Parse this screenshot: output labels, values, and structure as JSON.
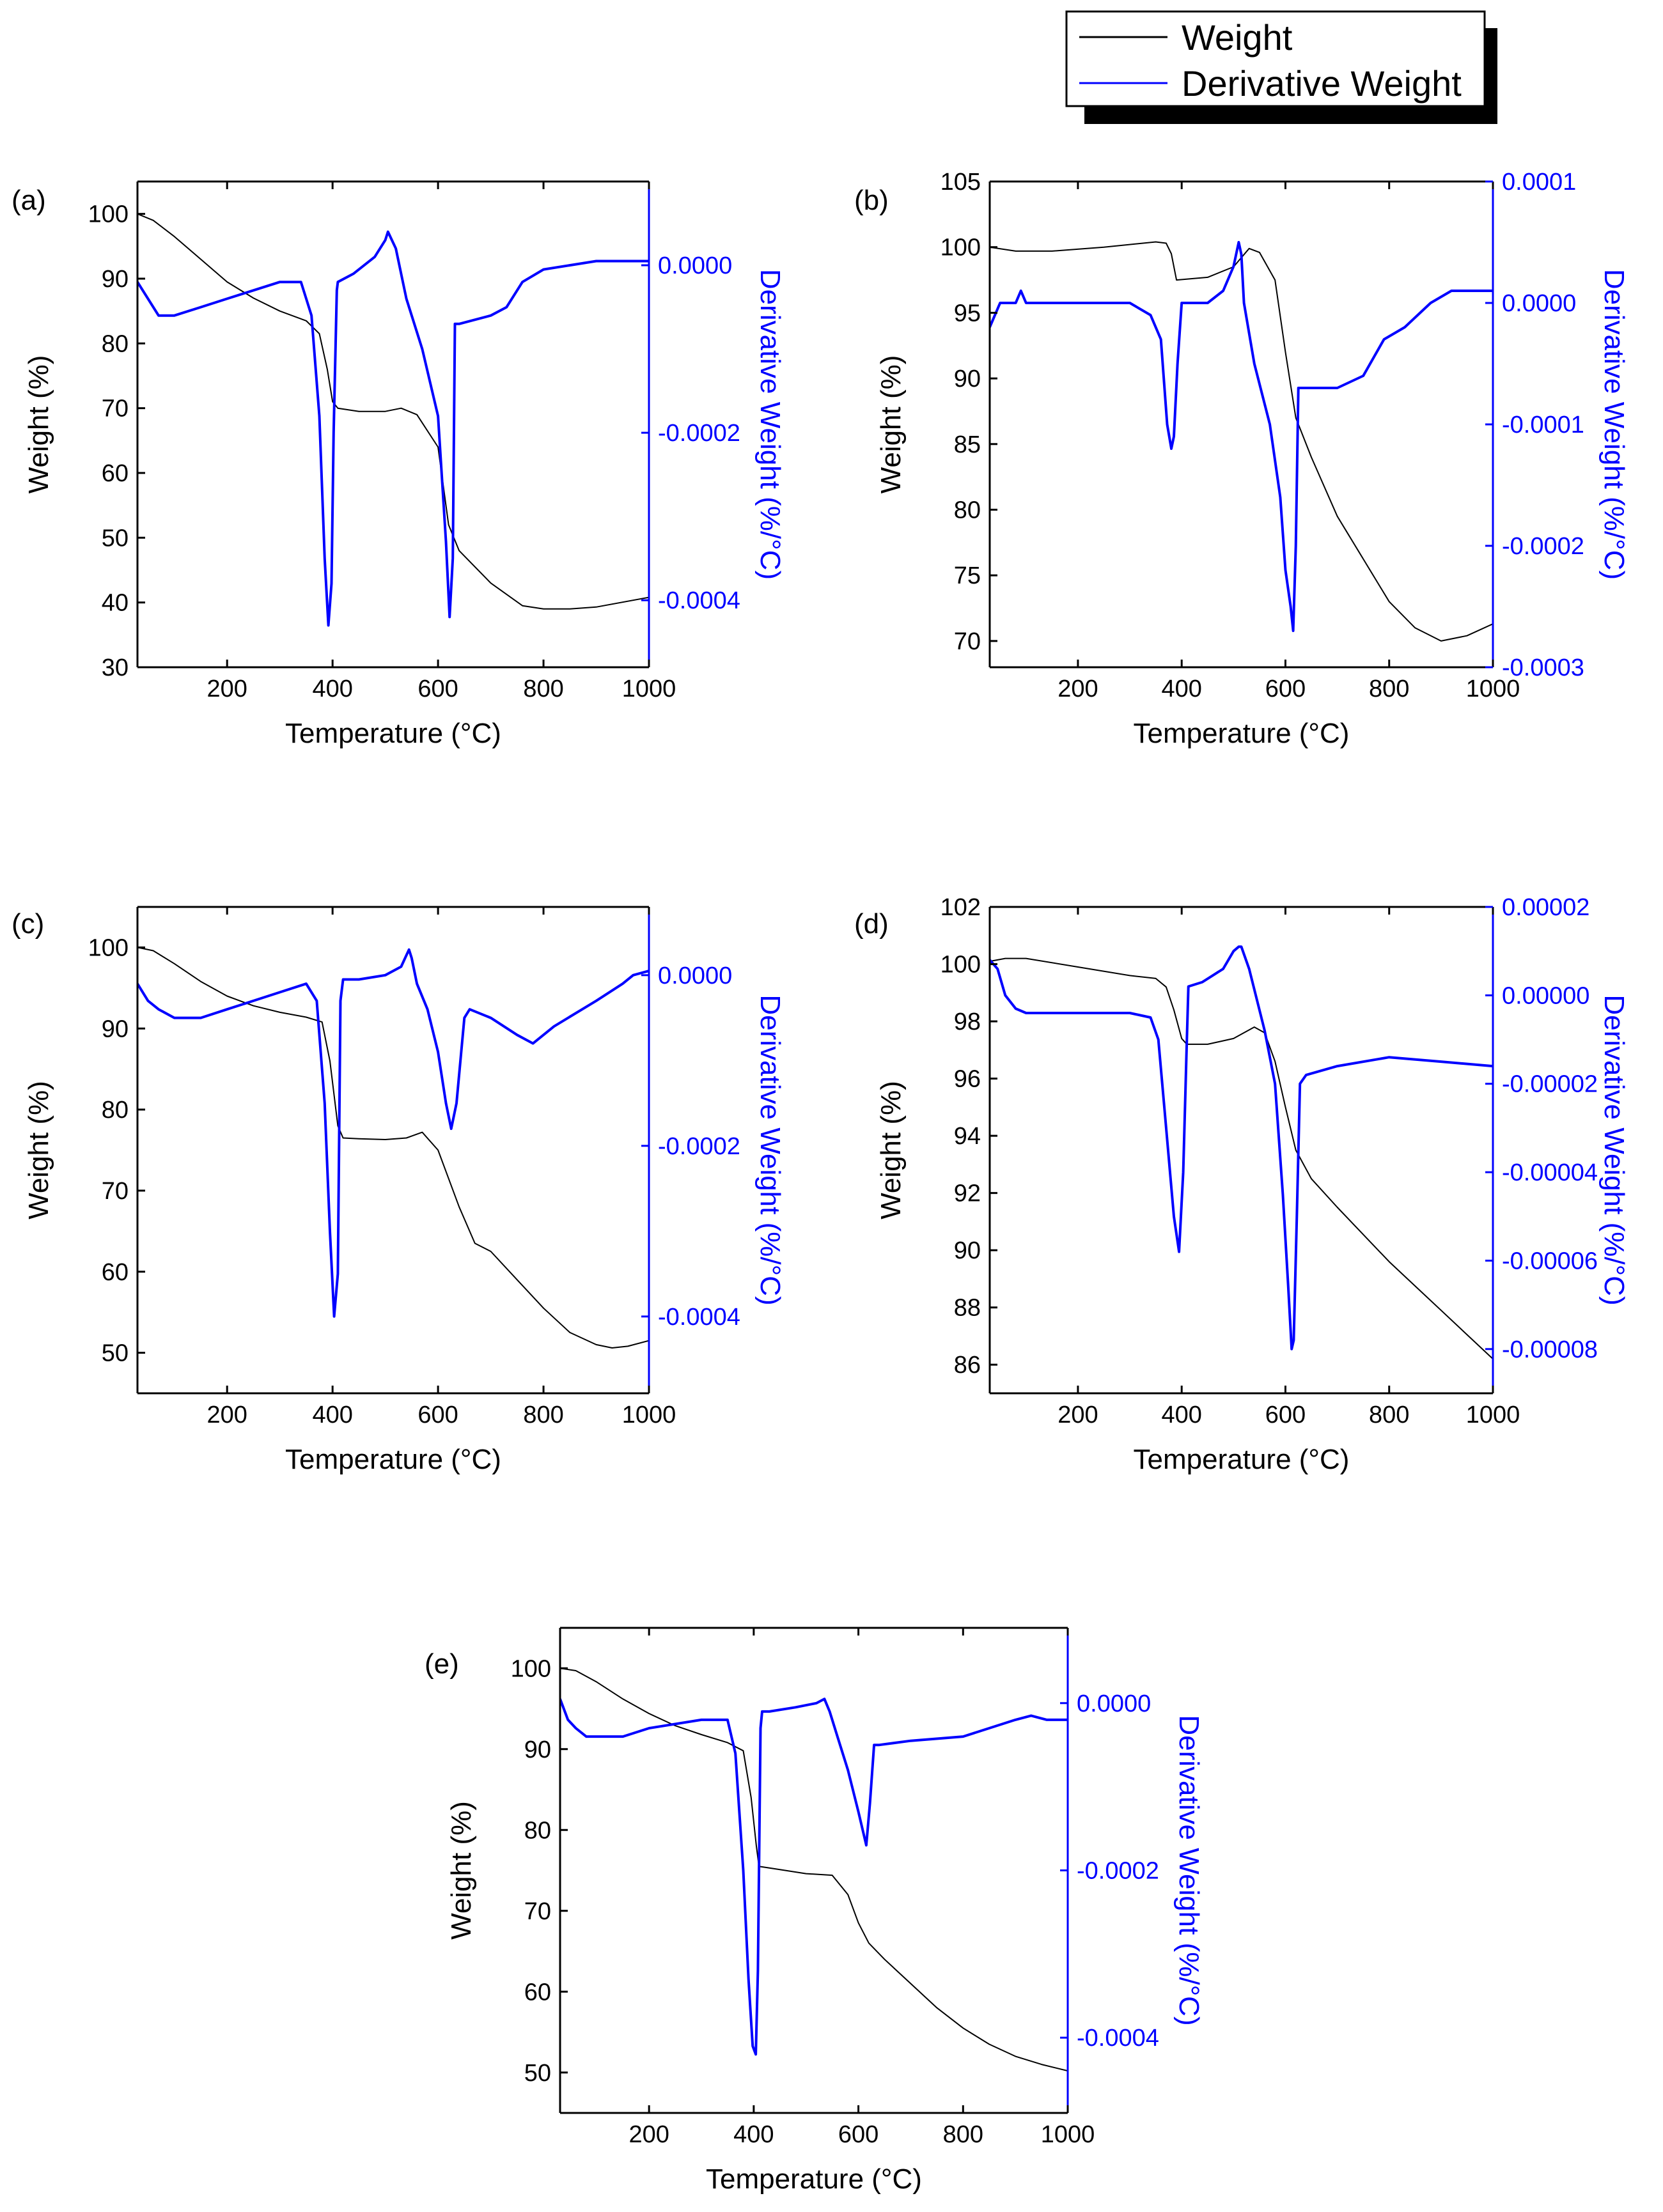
{
  "legend": {
    "weight_label": "Weight",
    "derivative_label": "Derivative Weight",
    "weight_color": "#000000",
    "derivative_color": "#0000ff"
  },
  "chart_data": [
    {
      "type": "line",
      "panel": "(a)",
      "xlabel": "Temperature (°C)",
      "ylabel": "Weight (%)",
      "y2label": "Derivative Weight (%/°C)",
      "xlim": [
        30,
        1000
      ],
      "ylim": [
        30,
        105
      ],
      "y2lim": [
        -0.00048,
        0.0001
      ],
      "xticks": [
        200,
        400,
        600,
        800,
        1000
      ],
      "yticks": [
        30,
        40,
        50,
        60,
        70,
        80,
        90,
        100
      ],
      "y2ticks": [
        -0.0004,
        -0.0002,
        0.0
      ],
      "y2tick_labels": [
        "-0.0004",
        "-0.0002",
        "0.0000"
      ],
      "series": [
        {
          "name": "Weight",
          "axis": "left",
          "x": [
            30,
            60,
            100,
            150,
            200,
            250,
            300,
            350,
            375,
            390,
            400,
            410,
            450,
            500,
            530,
            560,
            600,
            620,
            640,
            700,
            760,
            800,
            850,
            900,
            1000
          ],
          "y": [
            100,
            99,
            96.5,
            93,
            89.5,
            87,
            85,
            83.5,
            81.5,
            76,
            71,
            70,
            69.5,
            69.5,
            70,
            69,
            64,
            52,
            48,
            43,
            39.5,
            39,
            39,
            39.3,
            40.8
          ]
        },
        {
          "name": "Derivative Weight",
          "axis": "right",
          "x": [
            30,
            50,
            70,
            100,
            150,
            200,
            250,
            300,
            340,
            360,
            375,
            385,
            392,
            398,
            402,
            408,
            410,
            440,
            480,
            500,
            505,
            520,
            540,
            570,
            600,
            615,
            622,
            628,
            632,
            640,
            700,
            730,
            760,
            800,
            900,
            1000
          ],
          "y": [
            -2e-05,
            -4e-05,
            -6e-05,
            -6e-05,
            -5e-05,
            -4e-05,
            -3e-05,
            -2e-05,
            -2e-05,
            -6e-05,
            -0.00018,
            -0.00035,
            -0.00043,
            -0.00038,
            -0.0002,
            -3e-05,
            -2e-05,
            -1e-05,
            1e-05,
            3e-05,
            4e-05,
            2e-05,
            -4e-05,
            -0.0001,
            -0.00018,
            -0.00033,
            -0.00042,
            -0.00035,
            -7e-05,
            -7e-05,
            -6e-05,
            -5e-05,
            -2e-05,
            -5e-06,
            5e-06,
            5e-06
          ]
        }
      ]
    },
    {
      "type": "line",
      "panel": "(b)",
      "xlabel": "Temperature (°C)",
      "ylabel": "Weight (%)",
      "y2label": "Derivative Weight (%/°C)",
      "xlim": [
        30,
        1000
      ],
      "ylim": [
        68,
        105
      ],
      "y2lim": [
        -0.0003,
        0.0001
      ],
      "xticks": [
        200,
        400,
        600,
        800,
        1000
      ],
      "yticks": [
        70,
        75,
        80,
        85,
        90,
        95,
        100,
        105
      ],
      "y2ticks": [
        -0.0003,
        -0.0002,
        -0.0001,
        0.0,
        0.0001
      ],
      "y2tick_labels": [
        "-0.0003",
        "-0.0002",
        "-0.0001",
        "0.0000",
        "0.0001"
      ],
      "series": [
        {
          "name": "Weight",
          "axis": "left",
          "x": [
            30,
            80,
            150,
            250,
            350,
            370,
            380,
            390,
            450,
            500,
            530,
            550,
            580,
            600,
            620,
            650,
            700,
            800,
            850,
            900,
            950,
            1000
          ],
          "y": [
            100,
            99.7,
            99.7,
            100,
            100.4,
            100.3,
            99.5,
            97.5,
            97.7,
            98.5,
            99.9,
            99.6,
            97.5,
            92,
            87,
            84,
            79.5,
            73,
            71,
            70,
            70.4,
            71.3
          ]
        },
        {
          "name": "Derivative Weight",
          "axis": "right",
          "x": [
            30,
            50,
            80,
            90,
            100,
            150,
            200,
            300,
            340,
            360,
            372,
            380,
            385,
            392,
            400,
            420,
            450,
            480,
            500,
            510,
            515,
            520,
            540,
            570,
            590,
            600,
            610,
            615,
            620,
            625,
            640,
            700,
            750,
            790,
            830,
            880,
            920,
            950,
            1000
          ],
          "y": [
            -2e-05,
            0.0,
            0.0,
            1e-05,
            0.0,
            0.0,
            0.0,
            0.0,
            -1e-05,
            -3e-05,
            -0.0001,
            -0.00012,
            -0.00011,
            -5e-05,
            0.0,
            0.0,
            0.0,
            1e-05,
            3e-05,
            5e-05,
            4e-05,
            0.0,
            -5e-05,
            -0.0001,
            -0.00016,
            -0.00022,
            -0.00025,
            -0.00027,
            -0.0002,
            -7e-05,
            -7e-05,
            -7e-05,
            -6e-05,
            -3e-05,
            -2e-05,
            0.0,
            1e-05,
            1e-05,
            1e-05
          ]
        }
      ]
    },
    {
      "type": "line",
      "panel": "(c)",
      "xlabel": "Temperature (°C)",
      "ylabel": "Weight (%)",
      "y2label": "Derivative Weight (%/°C)",
      "xlim": [
        30,
        1000
      ],
      "ylim": [
        45,
        105
      ],
      "y2lim": [
        -0.00049,
        8e-05
      ],
      "xticks": [
        200,
        400,
        600,
        800,
        1000
      ],
      "yticks": [
        50,
        60,
        70,
        80,
        90,
        100
      ],
      "y2ticks": [
        -0.0004,
        -0.0002,
        0.0
      ],
      "y2tick_labels": [
        "-0.0004",
        "-0.0002",
        "0.0000"
      ],
      "series": [
        {
          "name": "Weight",
          "axis": "left",
          "x": [
            30,
            60,
            100,
            150,
            200,
            250,
            300,
            350,
            380,
            395,
            410,
            420,
            450,
            500,
            540,
            570,
            600,
            640,
            670,
            700,
            750,
            800,
            850,
            900,
            930,
            960,
            1000
          ],
          "y": [
            100,
            99.6,
            98,
            95.8,
            94,
            92.8,
            92,
            91.4,
            90.8,
            86,
            78,
            76.5,
            76.4,
            76.3,
            76.5,
            77.2,
            75,
            68,
            63.5,
            62.5,
            59,
            55.5,
            52.5,
            51,
            50.6,
            50.8,
            51.5
          ]
        },
        {
          "name": "Derivative Weight",
          "axis": "right",
          "x": [
            30,
            50,
            70,
            100,
            150,
            200,
            250,
            300,
            350,
            370,
            385,
            395,
            403,
            410,
            415,
            420,
            450,
            500,
            530,
            545,
            550,
            560,
            580,
            600,
            615,
            625,
            635,
            650,
            660,
            700,
            750,
            780,
            820,
            900,
            950,
            970,
            1000
          ],
          "y": [
            -1e-05,
            -3e-05,
            -4e-05,
            -5e-05,
            -5e-05,
            -4e-05,
            -3e-05,
            -2e-05,
            -1e-05,
            -3e-05,
            -0.00015,
            -0.0003,
            -0.0004,
            -0.00035,
            -3e-05,
            -5e-06,
            -5e-06,
            0.0,
            1e-05,
            3e-05,
            2e-05,
            -1e-05,
            -4e-05,
            -9e-05,
            -0.00015,
            -0.00018,
            -0.00015,
            -5e-05,
            -4e-05,
            -5e-05,
            -7e-05,
            -8e-05,
            -6e-05,
            -3e-05,
            -1e-05,
            0.0,
            5e-06
          ]
        }
      ]
    },
    {
      "type": "line",
      "panel": "(d)",
      "xlabel": "Temperature (°C)",
      "ylabel": "Weight (%)",
      "y2label": "Derivative Weight (%/°C)",
      "xlim": [
        30,
        1000
      ],
      "ylim": [
        85,
        102
      ],
      "y2lim": [
        -9e-05,
        2e-05
      ],
      "xticks": [
        200,
        400,
        600,
        800,
        1000
      ],
      "yticks": [
        86,
        88,
        90,
        92,
        94,
        96,
        98,
        100,
        102
      ],
      "y2ticks": [
        -8e-05,
        -6e-05,
        -4e-05,
        -2e-05,
        0.0,
        2e-05
      ],
      "y2tick_labels": [
        "-0.00008",
        "-0.00006",
        "-0.00004",
        "-0.00002",
        "0.00000",
        "0.00002"
      ],
      "series": [
        {
          "name": "Weight",
          "axis": "left",
          "x": [
            30,
            60,
            100,
            200,
            300,
            350,
            370,
            385,
            400,
            410,
            450,
            500,
            540,
            560,
            580,
            600,
            620,
            650,
            700,
            800,
            900,
            1000
          ],
          "y": [
            100.1,
            100.2,
            100.2,
            99.9,
            99.6,
            99.5,
            99.2,
            98.4,
            97.4,
            97.2,
            97.2,
            97.4,
            97.8,
            97.6,
            96.6,
            95,
            93.5,
            92.5,
            91.5,
            89.6,
            87.9,
            86.2
          ]
        },
        {
          "name": "Derivative Weight",
          "axis": "right",
          "x": [
            30,
            45,
            60,
            80,
            100,
            200,
            300,
            340,
            355,
            370,
            385,
            395,
            403,
            410,
            413,
            440,
            480,
            500,
            510,
            515,
            530,
            560,
            580,
            595,
            605,
            612,
            616,
            622,
            628,
            640,
            700,
            800,
            900,
            1000
          ],
          "y": [
            8e-06,
            6e-06,
            0.0,
            -3e-06,
            -4e-06,
            -4e-06,
            -4e-06,
            -5e-06,
            -1e-05,
            -3e-05,
            -5e-05,
            -5.8e-05,
            -4e-05,
            -1e-05,
            2e-06,
            3e-06,
            6e-06,
            1e-05,
            1.1e-05,
            1.1e-05,
            6e-06,
            -8e-06,
            -2e-05,
            -4.5e-05,
            -6.5e-05,
            -8e-05,
            -7.8e-05,
            -5e-05,
            -2e-05,
            -1.8e-05,
            -1.6e-05,
            -1.4e-05,
            -1.5e-05,
            -1.6e-05
          ]
        }
      ]
    },
    {
      "type": "line",
      "panel": "(e)",
      "xlabel": "Temperature (°C)",
      "ylabel": "Weight (%)",
      "y2label": "Derivative Weight (%/°C)",
      "xlim": [
        30,
        1000
      ],
      "ylim": [
        45,
        105
      ],
      "y2lim": [
        -0.00049,
        9e-05
      ],
      "xticks": [
        200,
        400,
        600,
        800,
        1000
      ],
      "yticks": [
        50,
        60,
        70,
        80,
        90,
        100
      ],
      "y2ticks": [
        -0.0004,
        -0.0002,
        0.0
      ],
      "y2tick_labels": [
        "-0.0004",
        "-0.0002",
        "0.0000"
      ],
      "series": [
        {
          "name": "Weight",
          "axis": "left",
          "x": [
            30,
            60,
            100,
            150,
            200,
            250,
            300,
            350,
            380,
            395,
            405,
            410,
            450,
            500,
            550,
            580,
            600,
            620,
            650,
            700,
            750,
            800,
            850,
            900,
            950,
            1000
          ],
          "y": [
            100,
            99.7,
            98.3,
            96.2,
            94.4,
            92.9,
            91.8,
            90.8,
            89.8,
            84,
            78,
            75.5,
            75.1,
            74.6,
            74.4,
            72,
            68.5,
            66,
            64,
            61,
            58,
            55.5,
            53.5,
            52,
            51,
            50.2
          ]
        },
        {
          "name": "Derivative Weight",
          "axis": "right",
          "x": [
            30,
            45,
            60,
            80,
            100,
            150,
            200,
            300,
            350,
            365,
            380,
            390,
            398,
            404,
            408,
            413,
            416,
            430,
            480,
            520,
            535,
            545,
            560,
            580,
            600,
            615,
            622,
            630,
            640,
            700,
            800,
            850,
            900,
            930,
            960,
            1000
          ],
          "y": [
            5e-06,
            -2e-05,
            -3e-05,
            -4e-05,
            -4e-05,
            -4e-05,
            -3e-05,
            -2e-05,
            -2e-05,
            -6e-05,
            -0.0002,
            -0.00033,
            -0.00041,
            -0.00042,
            -0.00032,
            -3e-05,
            -1e-05,
            -1e-05,
            -5e-06,
            0.0,
            5e-06,
            -1e-05,
            -4e-05,
            -8e-05,
            -0.00013,
            -0.00017,
            -0.00012,
            -5e-05,
            -5e-05,
            -4.5e-05,
            -4e-05,
            -3e-05,
            -2e-05,
            -1.5e-05,
            -2e-05,
            -2e-05
          ]
        }
      ]
    }
  ]
}
